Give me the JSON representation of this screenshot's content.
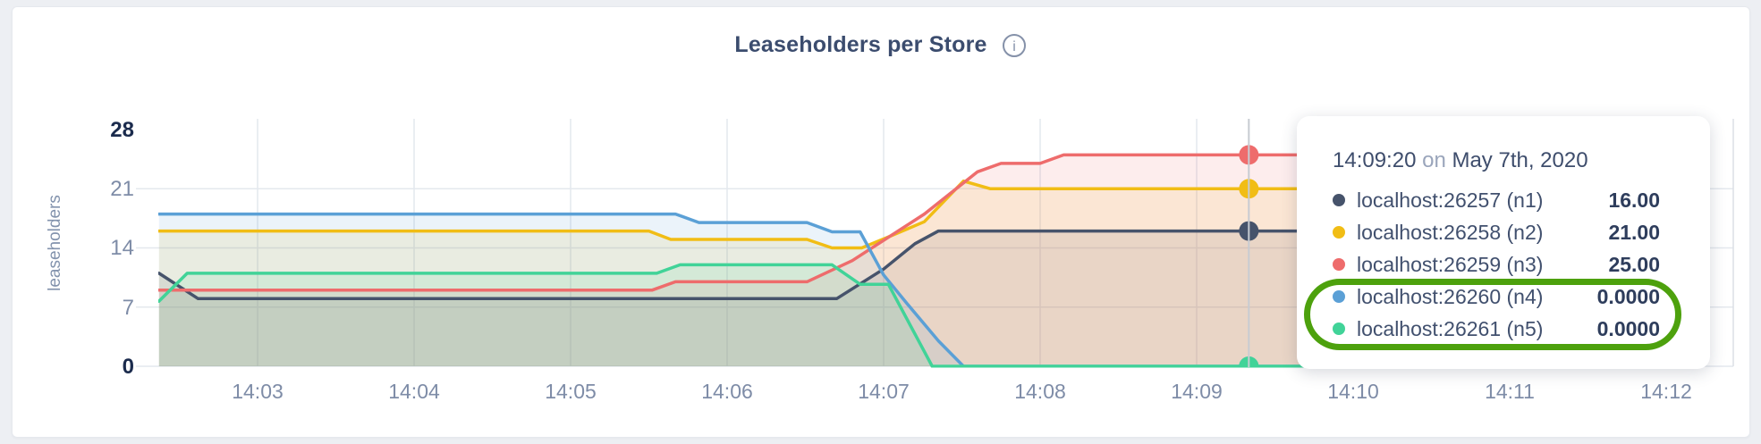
{
  "colors": {
    "page_bg": "#edeff3",
    "card_bg": "#ffffff",
    "card_border": "#e6e9ee",
    "grid": "#e4e8ee",
    "plot_right_edge": "#dcdfe5",
    "crosshair": "#c7cbd2",
    "axis_text": "#7e8ca7",
    "axis_text_strong": "#1b2b4d",
    "title_text": "#3b4c6e",
    "info_icon": "#8591a9",
    "tooltip_label": "#41506e",
    "tooltip_value": "#2e3d5c",
    "tooltip_muted": "#9aa5bb",
    "annotation_green": "#4da10d"
  },
  "header": {
    "title": "Leaseholders per Store",
    "info_icon_glyph": "i"
  },
  "chart_data": {
    "type": "area",
    "title": "Leaseholders per Store",
    "xlabel": "",
    "ylabel": "leaseholders",
    "ylim": [
      0,
      28
    ],
    "grid": true,
    "legend_position": "tooltip",
    "t_unit": "minutes after 14:02:00",
    "x_domain": [
      0.37,
      10.2
    ],
    "y_ticks": [
      {
        "label": "0",
        "value": 0,
        "strong": true,
        "gridline": true
      },
      {
        "label": "7",
        "value": 7,
        "strong": false,
        "gridline": true
      },
      {
        "label": "14",
        "value": 14,
        "strong": false,
        "gridline": true
      },
      {
        "label": "21",
        "value": 21,
        "strong": false,
        "gridline": true
      },
      {
        "label": "28",
        "value": 28,
        "strong": true,
        "gridline": false
      }
    ],
    "x_ticks": [
      {
        "t": 1,
        "label": "14:03"
      },
      {
        "t": 2,
        "label": "14:04"
      },
      {
        "t": 3,
        "label": "14:05"
      },
      {
        "t": 4,
        "label": "14:06"
      },
      {
        "t": 5,
        "label": "14:07"
      },
      {
        "t": 6,
        "label": "14:08"
      },
      {
        "t": 7,
        "label": "14:09"
      },
      {
        "t": 8,
        "label": "14:10"
      },
      {
        "t": 9,
        "label": "14:11"
      },
      {
        "t": 10,
        "label": "14:12"
      }
    ],
    "series": [
      {
        "id": "n1",
        "label": "localhost:26257 (n1)",
        "color": "#46536b",
        "fill_opacity": 0.12,
        "points": [
          [
            0.37,
            11
          ],
          [
            0.62,
            8
          ],
          [
            4.7,
            8
          ],
          [
            5.0,
            11.5
          ],
          [
            5.2,
            14.5
          ],
          [
            5.35,
            16
          ],
          [
            10.2,
            16
          ]
        ]
      },
      {
        "id": "n2",
        "label": "localhost:26258 (n2)",
        "color": "#f1bd15",
        "fill_opacity": 0.12,
        "points": [
          [
            0.37,
            16
          ],
          [
            3.5,
            16
          ],
          [
            3.64,
            15
          ],
          [
            4.51,
            15
          ],
          [
            4.67,
            14
          ],
          [
            4.86,
            14
          ],
          [
            5.03,
            15.3
          ],
          [
            5.26,
            17.1
          ],
          [
            5.51,
            21.9
          ],
          [
            5.68,
            21
          ],
          [
            10.2,
            21
          ]
        ]
      },
      {
        "id": "n3",
        "label": "localhost:26259 (n3)",
        "color": "#ee6c6c",
        "fill_opacity": 0.12,
        "points": [
          [
            0.37,
            9
          ],
          [
            3.52,
            9
          ],
          [
            3.67,
            10
          ],
          [
            4.51,
            10
          ],
          [
            4.8,
            12.5
          ],
          [
            5.26,
            18
          ],
          [
            5.6,
            23
          ],
          [
            5.75,
            24
          ],
          [
            6.0,
            24
          ],
          [
            6.15,
            25
          ],
          [
            10.2,
            25
          ]
        ]
      },
      {
        "id": "n4",
        "label": "localhost:26260 (n4)",
        "color": "#5ba0d6",
        "fill_opacity": 0.12,
        "points": [
          [
            0.37,
            18
          ],
          [
            3.67,
            18
          ],
          [
            3.82,
            17
          ],
          [
            4.51,
            17
          ],
          [
            4.67,
            15.9
          ],
          [
            4.85,
            15.9
          ],
          [
            5.0,
            10.8
          ],
          [
            5.15,
            7.4
          ],
          [
            5.35,
            3
          ],
          [
            5.51,
            0
          ],
          [
            10.2,
            0
          ]
        ]
      },
      {
        "id": "n5",
        "label": "localhost:26261 (n5)",
        "color": "#41d398",
        "fill_opacity": 0.12,
        "points": [
          [
            0.37,
            7.7
          ],
          [
            0.55,
            11
          ],
          [
            3.55,
            11
          ],
          [
            3.7,
            12
          ],
          [
            4.67,
            12
          ],
          [
            4.85,
            9.7
          ],
          [
            5.03,
            9.7
          ],
          [
            5.31,
            0
          ],
          [
            10.2,
            0
          ]
        ]
      }
    ],
    "crosshair": {
      "t": 7.3333,
      "time_label": "14:09:20",
      "values": {
        "n1": 16,
        "n2": 21,
        "n3": 25,
        "n4": 0,
        "n5": 0
      }
    }
  },
  "tooltip": {
    "time": "14:09:20",
    "on_word": "on",
    "date": "May 7th, 2020",
    "rows": [
      {
        "series": "n1",
        "label": "localhost:26257 (n1)",
        "value": "16.00",
        "highlighted": false
      },
      {
        "series": "n2",
        "label": "localhost:26258 (n2)",
        "value": "21.00",
        "highlighted": false
      },
      {
        "series": "n3",
        "label": "localhost:26259 (n3)",
        "value": "25.00",
        "highlighted": false
      },
      {
        "series": "n4",
        "label": "localhost:26260 (n4)",
        "value": "0.0000",
        "highlighted": true
      },
      {
        "series": "n5",
        "label": "localhost:26261 (n5)",
        "value": "0.0000",
        "highlighted": true
      }
    ],
    "annotation": {
      "shape": "oval",
      "color": "#4da10d",
      "highlights": [
        "n4",
        "n5"
      ]
    }
  }
}
